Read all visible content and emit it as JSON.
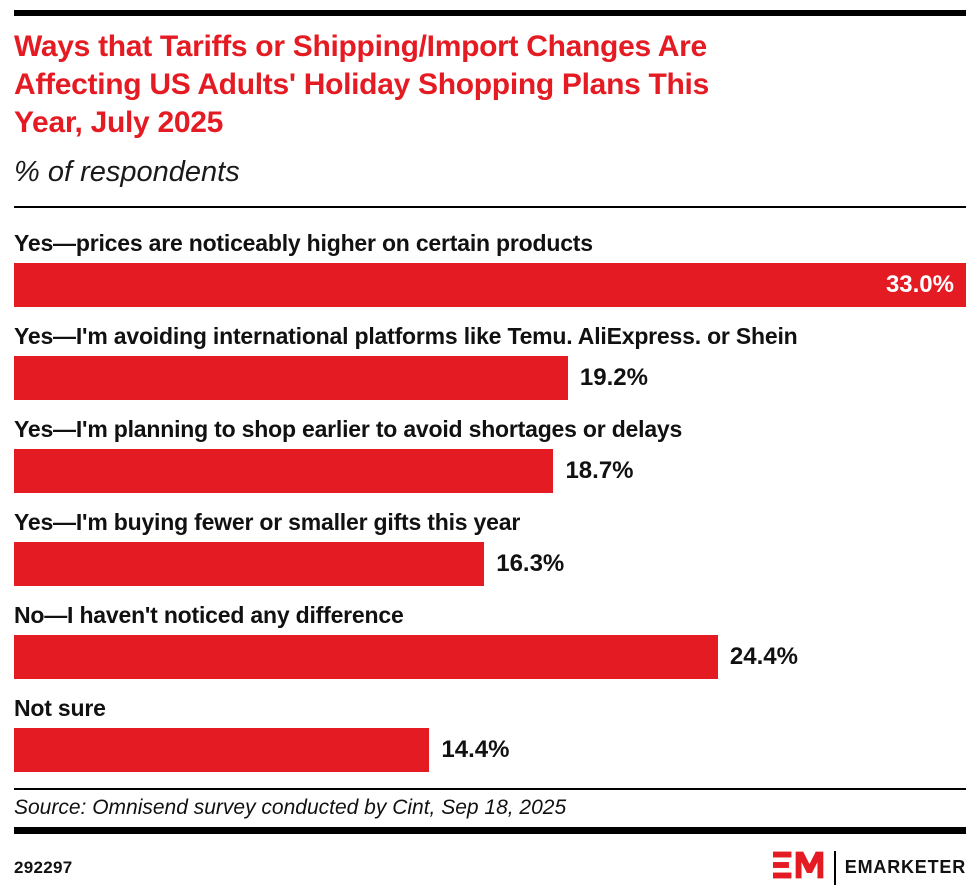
{
  "page": {
    "title": "Ways that Tariffs or Shipping/Import Changes Are\nAffecting US Adults' Holiday Shopping Plans This\nYear, July 2025",
    "subtitle": "% of respondents",
    "source": "Source: Omnisend survey conducted by Cint, Sep 18, 2025",
    "chart_id": "292297",
    "brand_name": "EMARKETER"
  },
  "colors": {
    "accent_red": "#E41B23",
    "rule_black": "#000000",
    "text": "#111111",
    "value_inside_text": "#FFFFFF"
  },
  "chart_data": {
    "type": "bar",
    "orientation": "horizontal",
    "title": "Ways that Tariffs or Shipping/Import Changes Are Affecting US Adults' Holiday Shopping Plans This Year, July 2025",
    "subtitle": "% of respondents",
    "unit": "% of respondents",
    "xlim": [
      0,
      33.0
    ],
    "grid": false,
    "legend": "none",
    "bar_color": "#E41B23",
    "categories": [
      "Yes—prices are noticeably higher on certain products",
      "Yes—I'm avoiding international platforms like Temu. AliExpress. or Shein",
      "Yes—I'm planning to shop earlier to avoid shortages or delays",
      "Yes—I'm buying fewer or smaller gifts this year",
      "No—I haven't noticed any difference",
      "Not sure"
    ],
    "values": [
      33.0,
      19.2,
      18.7,
      16.3,
      24.4,
      14.4
    ],
    "value_labels": [
      "33.0%",
      "19.2%",
      "18.7%",
      "16.3%",
      "24.4%",
      "14.4%"
    ],
    "value_label_positions": [
      "inside",
      "outside",
      "outside",
      "outside",
      "outside",
      "outside"
    ]
  }
}
